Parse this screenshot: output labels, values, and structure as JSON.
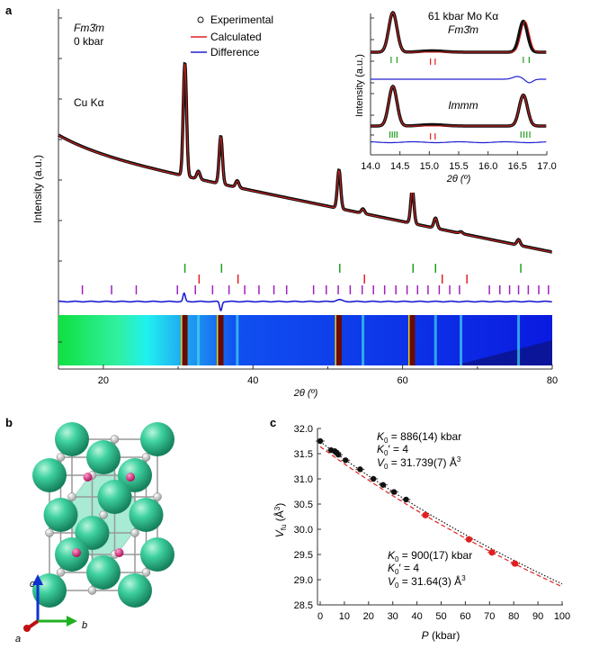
{
  "panel_labels": {
    "a": "a",
    "b": "b",
    "c": "c"
  },
  "chart_data": [
    {
      "id": "a-main",
      "type": "line",
      "title": "",
      "phase": "Fm3̄m",
      "pressure": "0 kbar",
      "radiation": "Cu Kα",
      "xlabel": "2θ (º)",
      "ylabel": "Intensity (a.u.)",
      "xlim": [
        14,
        80
      ],
      "xticks": [
        20,
        40,
        60,
        80
      ],
      "legend": {
        "placement": "top-center",
        "entries": [
          "Experimental",
          "Calculated",
          "Difference"
        ]
      },
      "colors": {
        "experimental": "#111111",
        "calculated": "#e02020",
        "difference": "#2020d0"
      },
      "peaks": [
        {
          "x": 30.9,
          "h": 1.0
        },
        {
          "x": 32.7,
          "h": 0.07
        },
        {
          "x": 35.7,
          "h": 0.42
        },
        {
          "x": 37.9,
          "h": 0.06
        },
        {
          "x": 51.5,
          "h": 0.34
        },
        {
          "x": 54.7,
          "h": 0.04
        },
        {
          "x": 61.3,
          "h": 0.3
        },
        {
          "x": 64.4,
          "h": 0.09
        },
        {
          "x": 67.8,
          "h": 0.015
        },
        {
          "x": 75.5,
          "h": 0.05
        }
      ],
      "tick_rows": {
        "green": [
          30.9,
          35.8,
          51.6,
          61.4,
          64.4,
          75.8
        ],
        "red": [
          32.8,
          38.0,
          54.9,
          65.3,
          68.6
        ],
        "purple": [
          17.2,
          21.1,
          24.4,
          29.9,
          32.3,
          34.6,
          36.8,
          38.9,
          40.8,
          42.8,
          44.5,
          48.1,
          49.8,
          51.4,
          53.0,
          54.6,
          56.1,
          57.6,
          59.1,
          60.6,
          62.0,
          63.4,
          64.9,
          66.3,
          67.6,
          71.6,
          73.0,
          74.3,
          75.5,
          76.8,
          78.2,
          79.5
        ]
      }
    },
    {
      "id": "a-inset",
      "type": "line",
      "title": "61 kbar Mo Kα",
      "phases": [
        "Fm3̄m",
        "Immm"
      ],
      "xlabel": "2θ (º)",
      "ylabel": "Intensity (a.u.)",
      "xlim": [
        14.0,
        17.0
      ],
      "xticks": [
        "14.0",
        "14.5",
        "15.0",
        "15.5",
        "16.0",
        "16.5",
        "17.0"
      ],
      "peaks": [
        {
          "x": 14.38,
          "h": 1.0
        },
        {
          "x": 16.6,
          "h": 0.78
        }
      ],
      "tick_rows": {
        "fm3m_green": [
          14.35,
          14.45,
          16.6,
          16.7
        ],
        "fm3m_red": [
          15.02,
          15.1
        ],
        "immm_green": [
          14.33,
          14.37,
          14.41,
          14.45,
          16.56,
          16.61,
          16.66,
          16.71
        ],
        "immm_red": [
          15.02,
          15.1
        ]
      }
    },
    {
      "id": "c",
      "type": "scatter",
      "xlabel": "P (kbar)",
      "ylabel": "Vfu (Å3)",
      "xlim": [
        0,
        100
      ],
      "ylim": [
        28.5,
        32.0
      ],
      "xticks": [
        "0",
        "10",
        "20",
        "30",
        "40",
        "50",
        "60",
        "70",
        "80",
        "90",
        "100"
      ],
      "yticks": [
        "28.5",
        "29.0",
        "29.5",
        "30.0",
        "30.5",
        "31.0",
        "31.5",
        "32.0"
      ],
      "series": [
        {
          "name": "Fm3̄m",
          "color": "#111111",
          "x": [
            0,
            4.5,
            6,
            6.8,
            7.5,
            10.5,
            16.5,
            22,
            26,
            30.5,
            35.5
          ],
          "y": [
            31.75,
            31.57,
            31.55,
            31.52,
            31.48,
            31.37,
            31.19,
            31.0,
            30.88,
            30.74,
            30.59
          ],
          "fit": {
            "K0": 886,
            "K0p": 4,
            "V0": 31.739,
            "style": "dotted"
          }
        },
        {
          "name": "Immm",
          "color": "#e02020",
          "x": [
            43.5,
            61.5,
            71,
            80.5
          ],
          "y": [
            30.28,
            29.8,
            29.54,
            29.32
          ],
          "fit": {
            "K0": 900,
            "K0p": 4,
            "V0": 31.64,
            "style": "dashed"
          }
        }
      ],
      "annotations": {
        "upper": [
          "K0 = 886(14) kbar",
          "K0′ = 4",
          "V0 = 31.739(7) Å3"
        ],
        "lower": [
          "K0 = 900(17) kbar",
          "K0′ = 4",
          "V0 = 31.64(3) Å3"
        ]
      }
    }
  ],
  "text": {
    "main_phase": "Fm3̄m",
    "main_pressure": "0 kbar",
    "radiation": "Cu Kα",
    "leg_exp": "Experimental",
    "leg_calc": "Calculated",
    "leg_diff": "Difference",
    "main_ylabel": "Intensity (a.u.)",
    "main_xlabel": "2θ (º)",
    "inset_title": "61 kbar Mo Kα",
    "inset_phase1": "Fm3̄m",
    "inset_phase2": "Immm",
    "inset_ylabel": "Intensity (a.u.)",
    "inset_xlabel": "2θ (º)",
    "c_up1_pre": "K",
    "c_up1_sub": "0",
    "c_up1_post": " = 886(14) kbar",
    "c_up2_pre": "K",
    "c_up2_sub": "0",
    "c_up2_post": "′ = 4",
    "c_up3_pre": "V",
    "c_up3_sub": "0",
    "c_up3_post": " = 31.739(7) Å",
    "c_up3_sup": "3",
    "c_lo1_pre": "K",
    "c_lo1_sub": "0",
    "c_lo1_post": " = 900(17) kbar",
    "c_lo2_pre": "K",
    "c_lo2_sub": "0",
    "c_lo2_post": "′ = 4",
    "c_lo3_pre": "V",
    "c_lo3_sub": "0",
    "c_lo3_post": " = 31.64(3) Å",
    "c_lo3_sup": "3",
    "c_ylabel_v": "V",
    "c_ylabel_sub": "fu",
    "c_ylabel_unit": " (Å",
    "c_ylabel_sup": "3",
    "c_ylabel_close": ")",
    "c_xlabel_p": "P",
    "c_xlabel_unit": " (kbar)",
    "axis_a": "a",
    "axis_b": "b",
    "axis_c": "c"
  }
}
